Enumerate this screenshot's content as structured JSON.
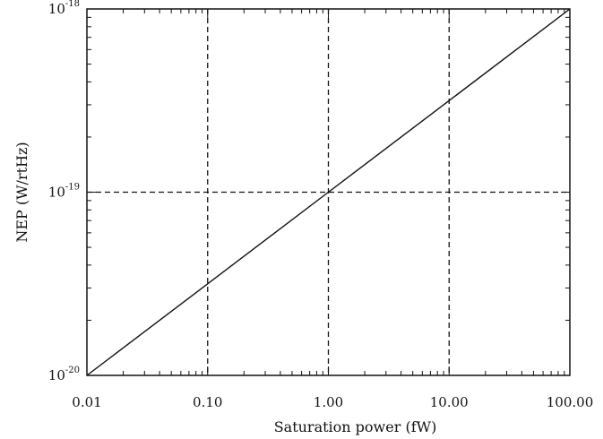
{
  "chart_data": {
    "type": "line",
    "x_scale": "log",
    "y_scale": "log",
    "xlim": [
      0.01,
      100
    ],
    "ylim": [
      1e-20,
      1e-18
    ],
    "xlabel": "Saturation power (fW)",
    "ylabel": "NEP (W/rtHz)",
    "x_ticks": [
      {
        "value": 0.01,
        "label": "0.01"
      },
      {
        "value": 0.1,
        "label": "0.10"
      },
      {
        "value": 1,
        "label": "1.00"
      },
      {
        "value": 10,
        "label": "10.00"
      },
      {
        "value": 100,
        "label": "100.00"
      }
    ],
    "y_ticks": [
      {
        "value": 1e-20,
        "base": "10",
        "exp": "-20"
      },
      {
        "value": 1e-19,
        "base": "10",
        "exp": "-19"
      },
      {
        "value": 1e-18,
        "base": "10",
        "exp": "-18"
      }
    ],
    "reference_lines": {
      "x": [
        0.1,
        1,
        10
      ],
      "y": [
        1e-19
      ],
      "style": "dashed"
    },
    "series": [
      {
        "x": [
          0.01,
          0.1,
          1,
          10,
          100
        ],
        "y": [
          1e-20,
          3.16e-20,
          1e-19,
          3.16e-19,
          1e-18
        ]
      }
    ],
    "grid": false
  }
}
